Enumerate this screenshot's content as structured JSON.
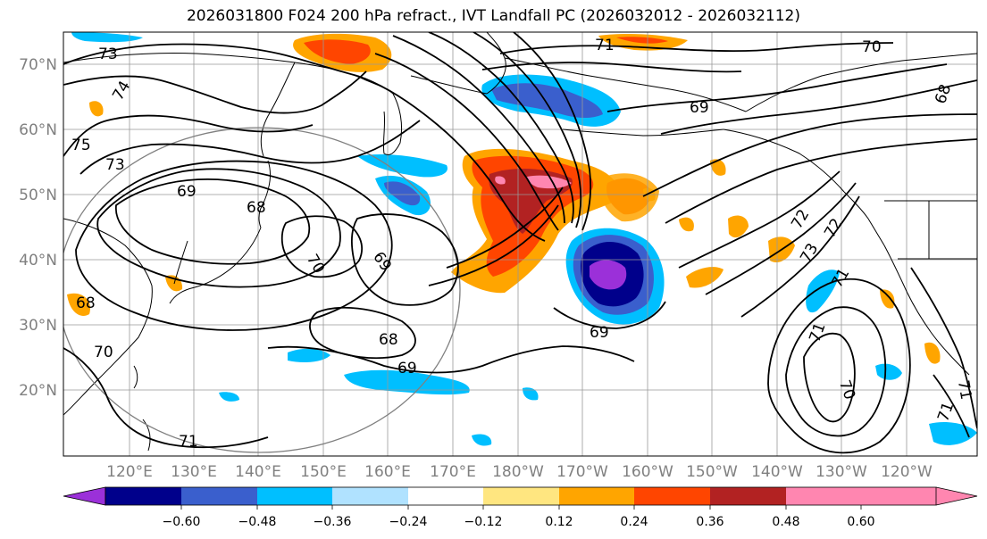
{
  "title": "2026031800 F024 200 hPa refract., IVT Landfall PC (2026032012 - 2026032112)",
  "lon_labels": [
    "120°E",
    "130°E",
    "140°E",
    "150°E",
    "160°E",
    "170°E",
    "180°W",
    "170°W",
    "160°W",
    "150°W",
    "140°W",
    "130°W",
    "120°W"
  ],
  "lat_labels": [
    "70°N",
    "60°N",
    "50°N",
    "40°N",
    "30°N",
    "20°N"
  ],
  "contour_labels": [
    "73",
    "74",
    "75",
    "73",
    "69",
    "68",
    "70",
    "69",
    "71",
    "70",
    "69",
    "68",
    "68",
    "70",
    "69",
    "71",
    "72",
    "73",
    "72",
    "71",
    "70",
    "71",
    "71",
    "71",
    "68",
    "69"
  ],
  "colorbar": {
    "ticks": [
      "−0.60",
      "−0.48",
      "−0.36",
      "−0.24",
      "−0.12",
      "0.12",
      "0.24",
      "0.36",
      "0.48",
      "0.60"
    ],
    "colors": [
      "#9b30d9",
      "#00008b",
      "#3a5fcd",
      "#00bfff",
      "#b0e2ff",
      "#ffffff",
      "#ffe680",
      "#ffa500",
      "#ff4500",
      "#b22222",
      "#ff86b0"
    ]
  }
}
